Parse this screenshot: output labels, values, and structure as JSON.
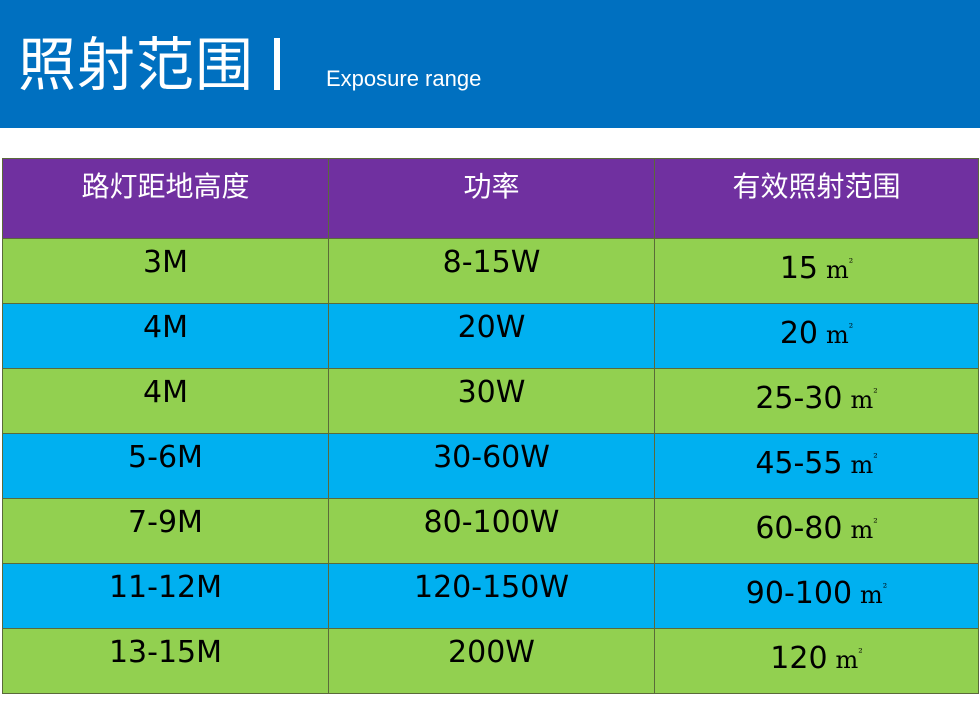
{
  "header": {
    "title_cn": "照射范围",
    "title_en": "Exposure range",
    "background_color": "#0070c0"
  },
  "table": {
    "header_color": "#7030a0",
    "row_colors": [
      "#92d050",
      "#00b0f0"
    ],
    "columns": [
      "路灯距地高度",
      "功率",
      "有效照射范围"
    ],
    "unit": "m",
    "unit_superscript": "²",
    "rows": [
      {
        "height": "3M",
        "power": "8-15W",
        "area": "15"
      },
      {
        "height": "4M",
        "power": "20W",
        "area": "20"
      },
      {
        "height": "4M",
        "power": "30W",
        "area": "25-30"
      },
      {
        "height": "5-6M",
        "power": "30-60W",
        "area": "45-55"
      },
      {
        "height": "7-9M",
        "power": "80-100W",
        "area": "60-80"
      },
      {
        "height": "11-12M",
        "power": "120-150W",
        "area": "90-100"
      },
      {
        "height": "13-15M",
        "power": "200W",
        "area": "120"
      }
    ]
  }
}
